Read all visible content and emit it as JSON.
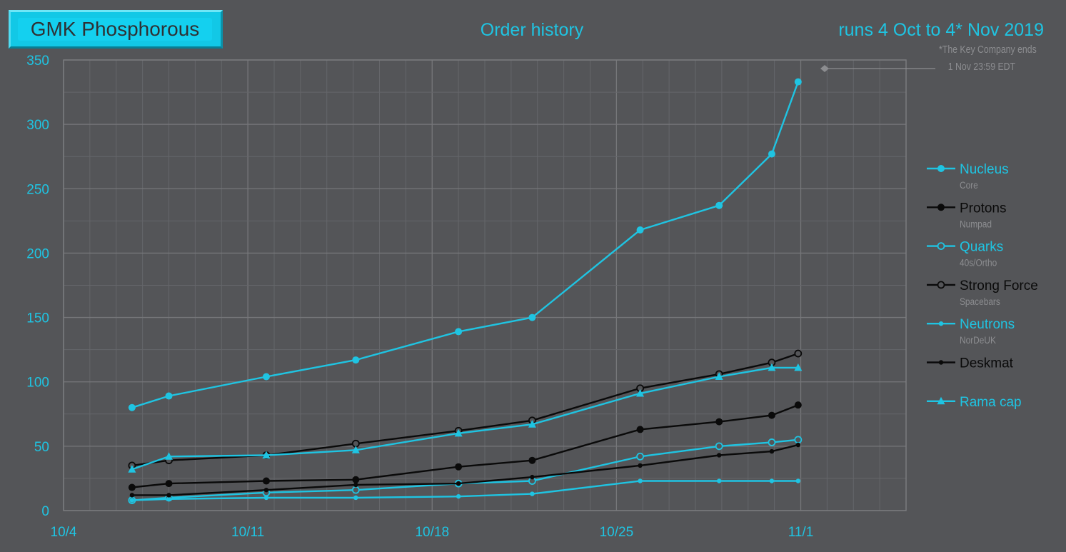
{
  "header": {
    "logo_text": "GMK Phosphorous",
    "title": "Order history",
    "subtitle": "runs 4 Oct to 4* Nov 2019",
    "note_line1": "*The Key Company ends",
    "note_line2": "1 Nov  23:59 EDT"
  },
  "colors": {
    "background": "#545558",
    "cyan": "#1fc4e2",
    "black": "#0a0a0a",
    "grid": "#6a6b6e",
    "muted": "#8c8d90"
  },
  "chart_data": {
    "type": "line",
    "x_tick_labels": [
      "10/4",
      "10/11",
      "10/18",
      "10/25",
      "11/1"
    ],
    "x_ticks_day": [
      0,
      7,
      14,
      21,
      28
    ],
    "y_ticks": [
      0,
      50,
      100,
      150,
      200,
      250,
      300,
      350
    ],
    "xlim_day": [
      0,
      32
    ],
    "ylim": [
      0,
      350
    ],
    "grid": true,
    "legend_position": "right",
    "series": [
      {
        "name": "Nucleus",
        "sublabel": "Core",
        "color": "#1fc4e2",
        "marker": "filled-circle",
        "marker_size": 5,
        "x": [
          2.6,
          4,
          7.7,
          11.1,
          15,
          17.8,
          21.9,
          24.9,
          26.9,
          27.9
        ],
        "y": [
          80,
          89,
          104,
          117,
          139,
          150,
          218,
          237,
          277,
          333
        ]
      },
      {
        "name": "Protons",
        "sublabel": "Numpad",
        "color": "#0a0a0a",
        "marker": "filled-circle",
        "marker_size": 5,
        "x": [
          2.6,
          4,
          7.7,
          11.1,
          15,
          17.8,
          21.9,
          24.9,
          26.9,
          27.9
        ],
        "y": [
          18,
          21,
          23,
          24,
          34,
          39,
          63,
          69,
          74,
          82
        ]
      },
      {
        "name": "Quarks",
        "sublabel": "40s/Ortho",
        "color": "#1fc4e2",
        "marker": "open-circle",
        "marker_size": 4.5,
        "x": [
          2.6,
          4,
          7.7,
          11.1,
          15,
          17.8,
          21.9,
          24.9,
          26.9,
          27.9
        ],
        "y": [
          8,
          10,
          14,
          16,
          21,
          23,
          42,
          50,
          53,
          55
        ]
      },
      {
        "name": "Strong Force",
        "sublabel": "Spacebars",
        "color": "#0a0a0a",
        "marker": "open-circle",
        "marker_size": 4.5,
        "x": [
          2.6,
          4,
          7.7,
          11.1,
          15,
          17.8,
          21.9,
          24.9,
          26.9,
          27.9
        ],
        "y": [
          35,
          39,
          43,
          52,
          62,
          70,
          95,
          106,
          115,
          122
        ]
      },
      {
        "name": "Neutrons",
        "sublabel": "NorDeUK",
        "color": "#1fc4e2",
        "marker": "small-dot",
        "marker_size": 3.2,
        "x": [
          2.6,
          4,
          7.7,
          11.1,
          15,
          17.8,
          21.9,
          24.9,
          26.9,
          27.9
        ],
        "y": [
          8,
          9,
          10,
          10,
          11,
          13,
          23,
          23,
          23,
          23
        ]
      },
      {
        "name": "Deskmat",
        "sublabel": "",
        "color": "#0a0a0a",
        "marker": "small-dot",
        "marker_size": 3.2,
        "x": [
          2.6,
          4,
          7.7,
          11.1,
          15,
          17.8,
          21.9,
          24.9,
          26.9,
          27.9
        ],
        "y": [
          12,
          12,
          16,
          20,
          21,
          26,
          35,
          43,
          46,
          51
        ]
      },
      {
        "name": "Rama cap",
        "sublabel": "",
        "color": "#1fc4e2",
        "marker": "triangle",
        "marker_size": 5,
        "x": [
          2.6,
          4,
          7.7,
          11.1,
          15,
          17.8,
          21.9,
          24.9,
          26.9,
          27.9
        ],
        "y": [
          32,
          42,
          43,
          47,
          60,
          67,
          91,
          104,
          111,
          111
        ]
      }
    ]
  }
}
